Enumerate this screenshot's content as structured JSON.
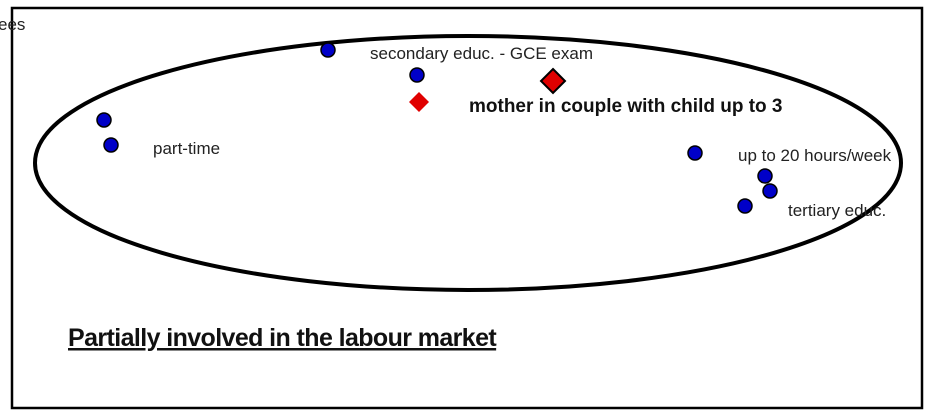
{
  "labels": {
    "clipped": "ees",
    "secondary": "secondary educ. - GCE exam",
    "mother": "mother in couple with child up to 3",
    "parttime": "part-time",
    "hours": "up to 20 hours/week",
    "tertiary": "tertiary educ."
  },
  "caption": "Partially involved in the labour market"
}
